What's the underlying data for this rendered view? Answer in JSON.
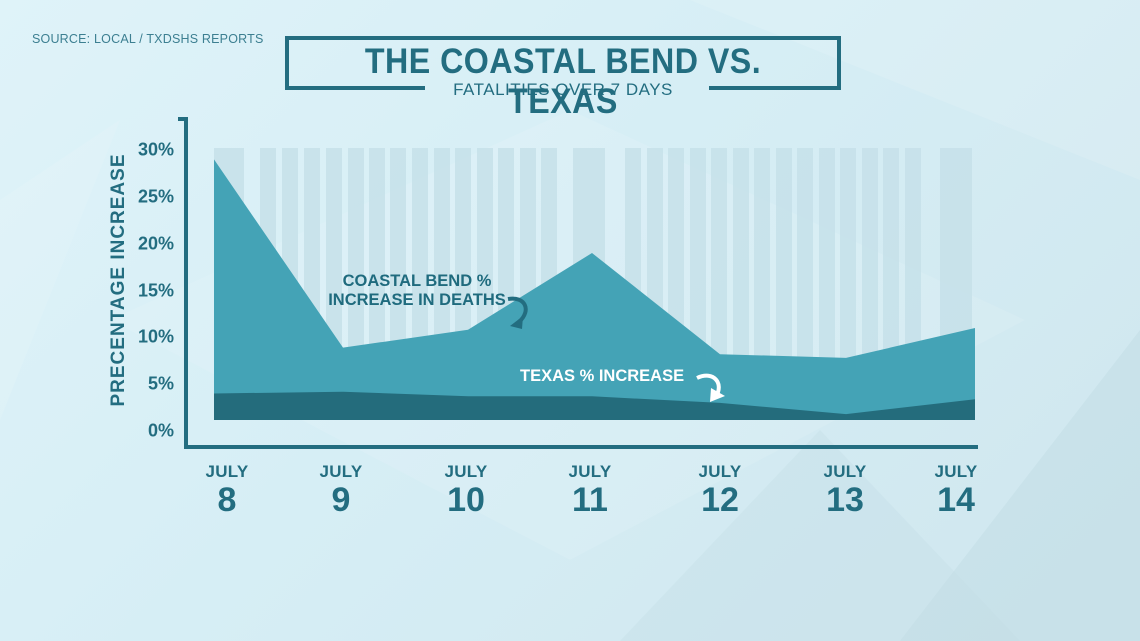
{
  "source": "SOURCE: LOCAL / TXDSHS REPORTS",
  "header": {
    "title": "THE COASTAL BEND VS. TEXAS",
    "subtitle": "FATALITIES OVER 7 DAYS"
  },
  "colors": {
    "primary_dark": "#236d80",
    "coastal_bend_fill": "#44a3b6",
    "texas_fill": "#246c7c",
    "stripe": "#c6e1e9",
    "background": "#d8eef5"
  },
  "annotations": {
    "coastal_bend": [
      "COASTAL BEND %",
      "INCREASE IN DEATHS"
    ],
    "texas": "TEXAS % INCREASE"
  },
  "chart_data": {
    "type": "area",
    "title": "THE COASTAL BEND VS. TEXAS",
    "subtitle": "FATALITIES OVER 7 DAYS",
    "xlabel": "",
    "ylabel": "PRECENTAGE INCREASE",
    "ylim": [
      0,
      30
    ],
    "yticks": [
      "30%",
      "25%",
      "20%",
      "15%",
      "10%",
      "5%",
      "0%"
    ],
    "categories": [
      {
        "month": "JULY",
        "day": "8"
      },
      {
        "month": "JULY",
        "day": "9"
      },
      {
        "month": "JULY",
        "day": "10"
      },
      {
        "month": "JULY",
        "day": "11"
      },
      {
        "month": "JULY",
        "day": "12"
      },
      {
        "month": "JULY",
        "day": "13"
      },
      {
        "month": "JULY",
        "day": "14"
      }
    ],
    "series": [
      {
        "name": "COASTAL BEND % INCREASE IN DEATHS",
        "values": [
          29.0,
          8.9,
          10.8,
          19.0,
          8.2,
          7.8,
          11.0
        ]
      },
      {
        "name": "TEXAS % INCREASE",
        "values": [
          4.0,
          4.2,
          3.7,
          3.7,
          3.0,
          1.8,
          3.4
        ]
      }
    ],
    "grid": false,
    "legend": "inline annotations"
  }
}
